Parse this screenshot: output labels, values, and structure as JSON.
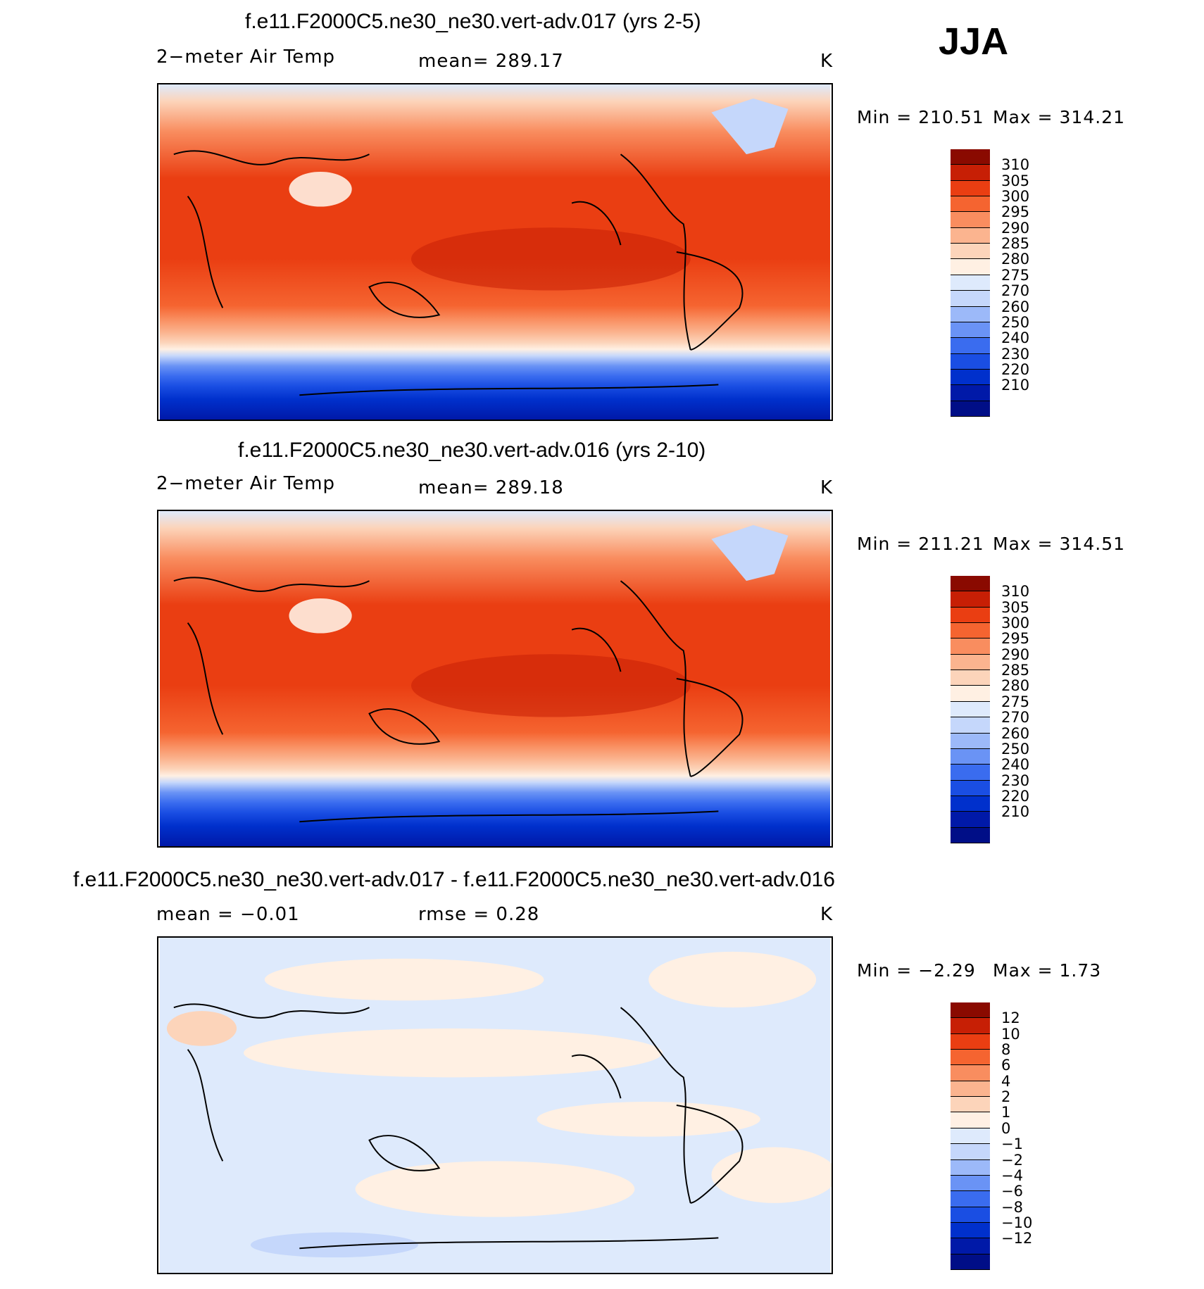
{
  "season": "JJA",
  "colors": {
    "temp_scale": [
      "#000e87",
      "#0019a8",
      "#0030cc",
      "#1a4ee3",
      "#3a6cef",
      "#6a93f5",
      "#9cb9f9",
      "#c5d7fb",
      "#deeafc",
      "#fff0e3",
      "#fcd4ba",
      "#fbb48f",
      "#f98d5f",
      "#f56430",
      "#ea3e12",
      "#c71f05",
      "#8a0a00"
    ],
    "diff_scale": [
      "#000e87",
      "#0019a8",
      "#0030cc",
      "#1a4ee3",
      "#3a6cef",
      "#6a93f5",
      "#9cb9f9",
      "#c5d7fb",
      "#deeafc",
      "#fff0e3",
      "#fcd4ba",
      "#fbb48f",
      "#f98d5f",
      "#f56430",
      "#ea3e12",
      "#c71f05",
      "#8a0a00"
    ]
  },
  "panels": [
    {
      "id": "top",
      "title": "f.e11.F2000C5.ne30_ne30.vert-adv.017 (yrs 2-5)",
      "variable": "2−meter Air Temp",
      "stat_text": "mean=  289.17",
      "units": "K",
      "min_label": "Min  =  210.51",
      "max_label": "Max  =  314.21",
      "colorbar_ticks": [
        "310",
        "305",
        "300",
        "295",
        "290",
        "285",
        "280",
        "275",
        "270",
        "260",
        "250",
        "240",
        "230",
        "220",
        "210"
      ]
    },
    {
      "id": "middle",
      "title": "f.e11.F2000C5.ne30_ne30.vert-adv.016 (yrs 2-10)",
      "variable": "2−meter Air Temp",
      "stat_text": "mean=  289.18",
      "units": "K",
      "min_label": "Min  =  211.21",
      "max_label": "Max  =  314.51",
      "colorbar_ticks": [
        "310",
        "305",
        "300",
        "295",
        "290",
        "285",
        "280",
        "275",
        "270",
        "260",
        "250",
        "240",
        "230",
        "220",
        "210"
      ]
    },
    {
      "id": "difference",
      "title": "f.e11.F2000C5.ne30_ne30.vert-adv.017 - f.e11.F2000C5.ne30_ne30.vert-adv.016",
      "mean_text": "mean =    −0.01",
      "rmse_text": "rmse =     0.28",
      "units": "K",
      "min_label": "Min  =    −2.29",
      "max_label": "Max  =     1.73",
      "colorbar_ticks": [
        "12",
        "10",
        "8",
        "6",
        "4",
        "2",
        "1",
        "0",
        "−1",
        "−2",
        "−4",
        "−6",
        "−8",
        "−10",
        "−12"
      ]
    }
  ]
}
